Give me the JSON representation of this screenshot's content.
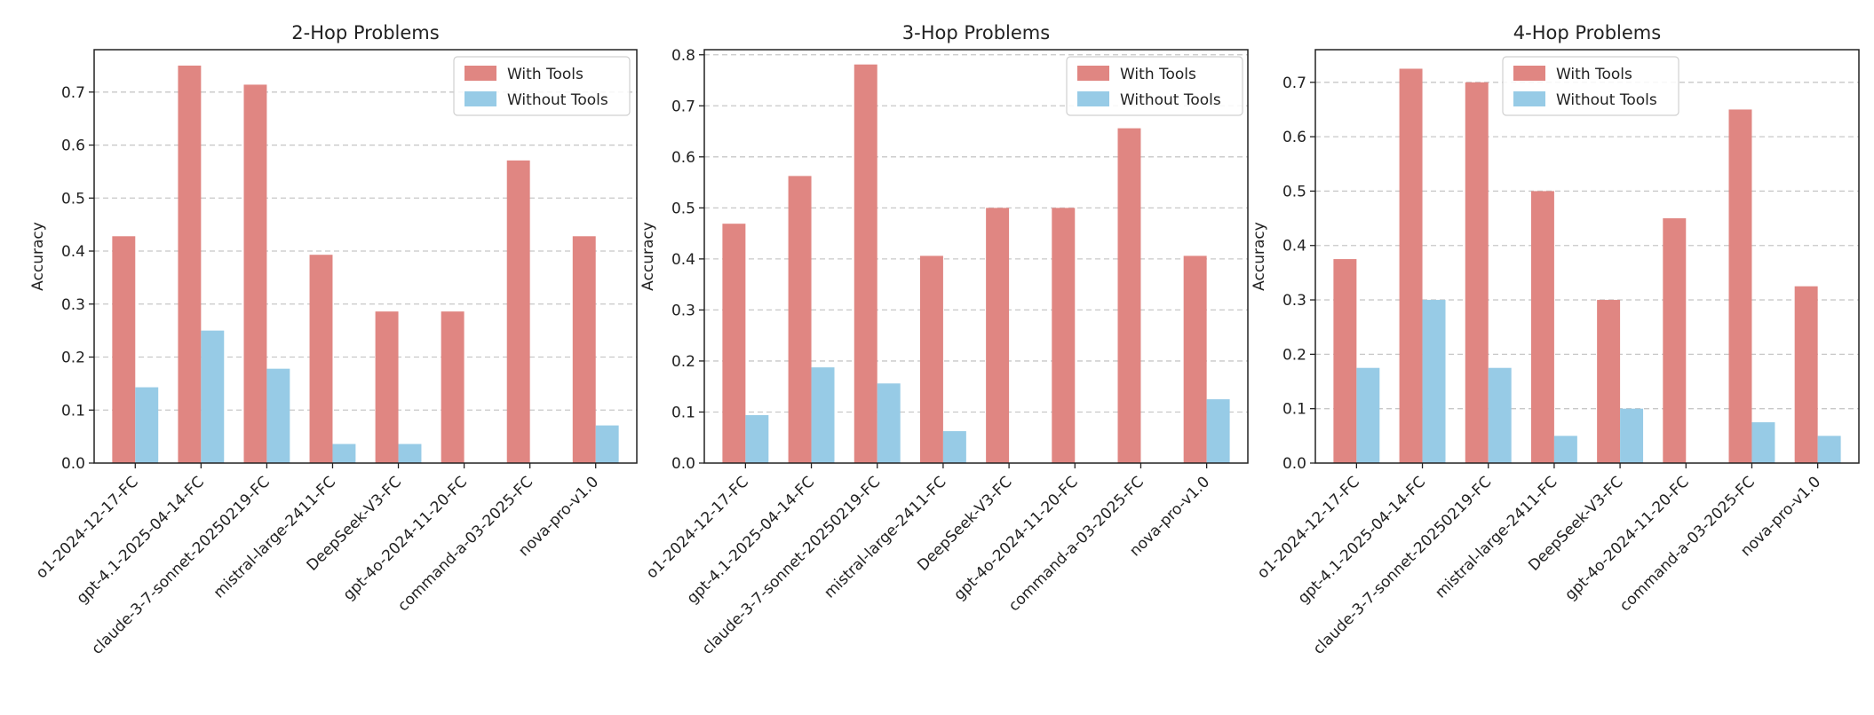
{
  "chart_data": [
    {
      "type": "bar",
      "title": "2-Hop Problems",
      "ylabel": "Accuracy",
      "ylim": [
        0,
        0.78
      ],
      "yticks": [
        "0.0",
        "0.1",
        "0.2",
        "0.3",
        "0.4",
        "0.5",
        "0.6",
        "0.7"
      ],
      "grid": true,
      "legend": "top-right",
      "categories": [
        "o1-2024-12-17-FC",
        "gpt-4.1-2025-04-14-FC",
        "claude-3-7-sonnet-20250219-FC",
        "mistral-large-2411-FC",
        "DeepSeek-V3-FC",
        "gpt-4o-2024-11-20-FC",
        "command-a-03-2025-FC",
        "nova-pro-v1.0"
      ],
      "series": [
        {
          "name": "With Tools",
          "color": "#e08682",
          "values": [
            0.428,
            0.75,
            0.714,
            0.393,
            0.286,
            0.286,
            0.571,
            0.428
          ]
        },
        {
          "name": "Without Tools",
          "color": "#97cbe6",
          "values": [
            0.143,
            0.25,
            0.178,
            0.036,
            0.036,
            0.0,
            0.0,
            0.071
          ]
        }
      ]
    },
    {
      "type": "bar",
      "title": "3-Hop Problems",
      "ylabel": "Accuracy",
      "ylim": [
        0,
        0.81
      ],
      "yticks": [
        "0.0",
        "0.1",
        "0.2",
        "0.3",
        "0.4",
        "0.5",
        "0.6",
        "0.7",
        "0.8"
      ],
      "grid": true,
      "legend": "top-right",
      "categories": [
        "o1-2024-12-17-FC",
        "gpt-4.1-2025-04-14-FC",
        "claude-3-7-sonnet-20250219-FC",
        "mistral-large-2411-FC",
        "DeepSeek-V3-FC",
        "gpt-4o-2024-11-20-FC",
        "command-a-03-2025-FC",
        "nova-pro-v1.0"
      ],
      "series": [
        {
          "name": "With Tools",
          "color": "#e08682",
          "values": [
            0.469,
            0.5625,
            0.781,
            0.406,
            0.5,
            0.5,
            0.656,
            0.406
          ]
        },
        {
          "name": "Without Tools",
          "color": "#97cbe6",
          "values": [
            0.094,
            0.1875,
            0.156,
            0.0625,
            0.0,
            0.0,
            0.0,
            0.125
          ]
        }
      ]
    },
    {
      "type": "bar",
      "title": "4-Hop Problems",
      "ylabel": "Accuracy",
      "ylim": [
        0,
        0.76
      ],
      "yticks": [
        "0.0",
        "0.1",
        "0.2",
        "0.3",
        "0.4",
        "0.5",
        "0.6",
        "0.7"
      ],
      "grid": true,
      "legend": "top-center",
      "categories": [
        "o1-2024-12-17-FC",
        "gpt-4.1-2025-04-14-FC",
        "claude-3-7-sonnet-20250219-FC",
        "mistral-large-2411-FC",
        "DeepSeek-V3-FC",
        "gpt-4o-2024-11-20-FC",
        "command-a-03-2025-FC",
        "nova-pro-v1.0"
      ],
      "series": [
        {
          "name": "With Tools",
          "color": "#e08682",
          "values": [
            0.375,
            0.725,
            0.7,
            0.5,
            0.3,
            0.45,
            0.65,
            0.325
          ]
        },
        {
          "name": "Without Tools",
          "color": "#97cbe6",
          "values": [
            0.175,
            0.3,
            0.175,
            0.05,
            0.1,
            0.0,
            0.075,
            0.05
          ]
        }
      ]
    }
  ]
}
